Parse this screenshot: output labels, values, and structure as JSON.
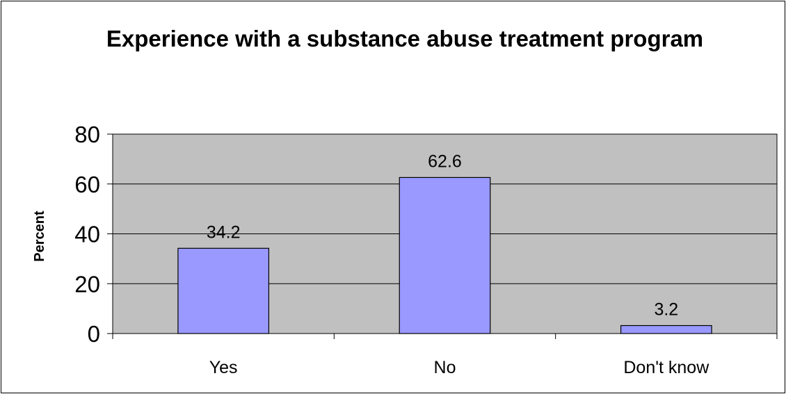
{
  "chart_data": {
    "type": "bar",
    "title": "Experience with a substance abuse treatment program",
    "xlabel": "",
    "ylabel": "Percent",
    "categories": [
      "Yes",
      "No",
      "Don't know"
    ],
    "values": [
      34.2,
      62.6,
      3.2
    ],
    "data_labels": [
      "34.2",
      "62.6",
      "3.2"
    ],
    "ylim": [
      0,
      80
    ],
    "yticks": [
      0,
      20,
      40,
      60,
      80
    ],
    "grid": true,
    "legend": "none",
    "colors": {
      "bar_fill": "#9999ff",
      "plot_background": "#c0c0c0",
      "gridline": "#000000"
    }
  }
}
